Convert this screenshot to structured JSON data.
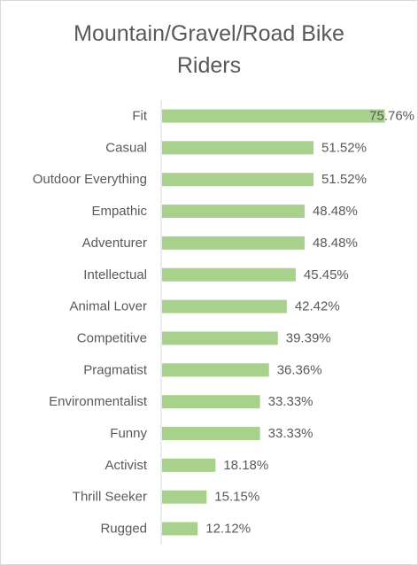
{
  "chart_data": {
    "type": "bar",
    "orientation": "horizontal",
    "title_lines": [
      "Mountain/Gravel/Road Bike",
      "Riders"
    ],
    "xlabel": "",
    "ylabel": "",
    "value_unit": "%",
    "xlim": [
      0,
      0.8
    ],
    "grid": false,
    "legend": "none",
    "bar_color": "#a9d18e",
    "categories": [
      "Fit",
      "Casual",
      "Outdoor Everything",
      "Empathic",
      "Adventurer",
      "Intellectual",
      "Animal Lover",
      "Competitive",
      "Pragmatist",
      "Environmentalist",
      "Funny",
      "Activist",
      "Thrill Seeker",
      "Rugged"
    ],
    "values": [
      0.7576,
      0.5152,
      0.5152,
      0.4848,
      0.4848,
      0.4545,
      0.4242,
      0.3939,
      0.3636,
      0.3333,
      0.3333,
      0.1818,
      0.1515,
      0.1212
    ],
    "data_labels": [
      "75.76%",
      "51.52%",
      "51.52%",
      "48.48%",
      "48.48%",
      "45.45%",
      "42.42%",
      "39.39%",
      "36.36%",
      "33.33%",
      "33.33%",
      "18.18%",
      "15.15%",
      "12.12%"
    ]
  }
}
